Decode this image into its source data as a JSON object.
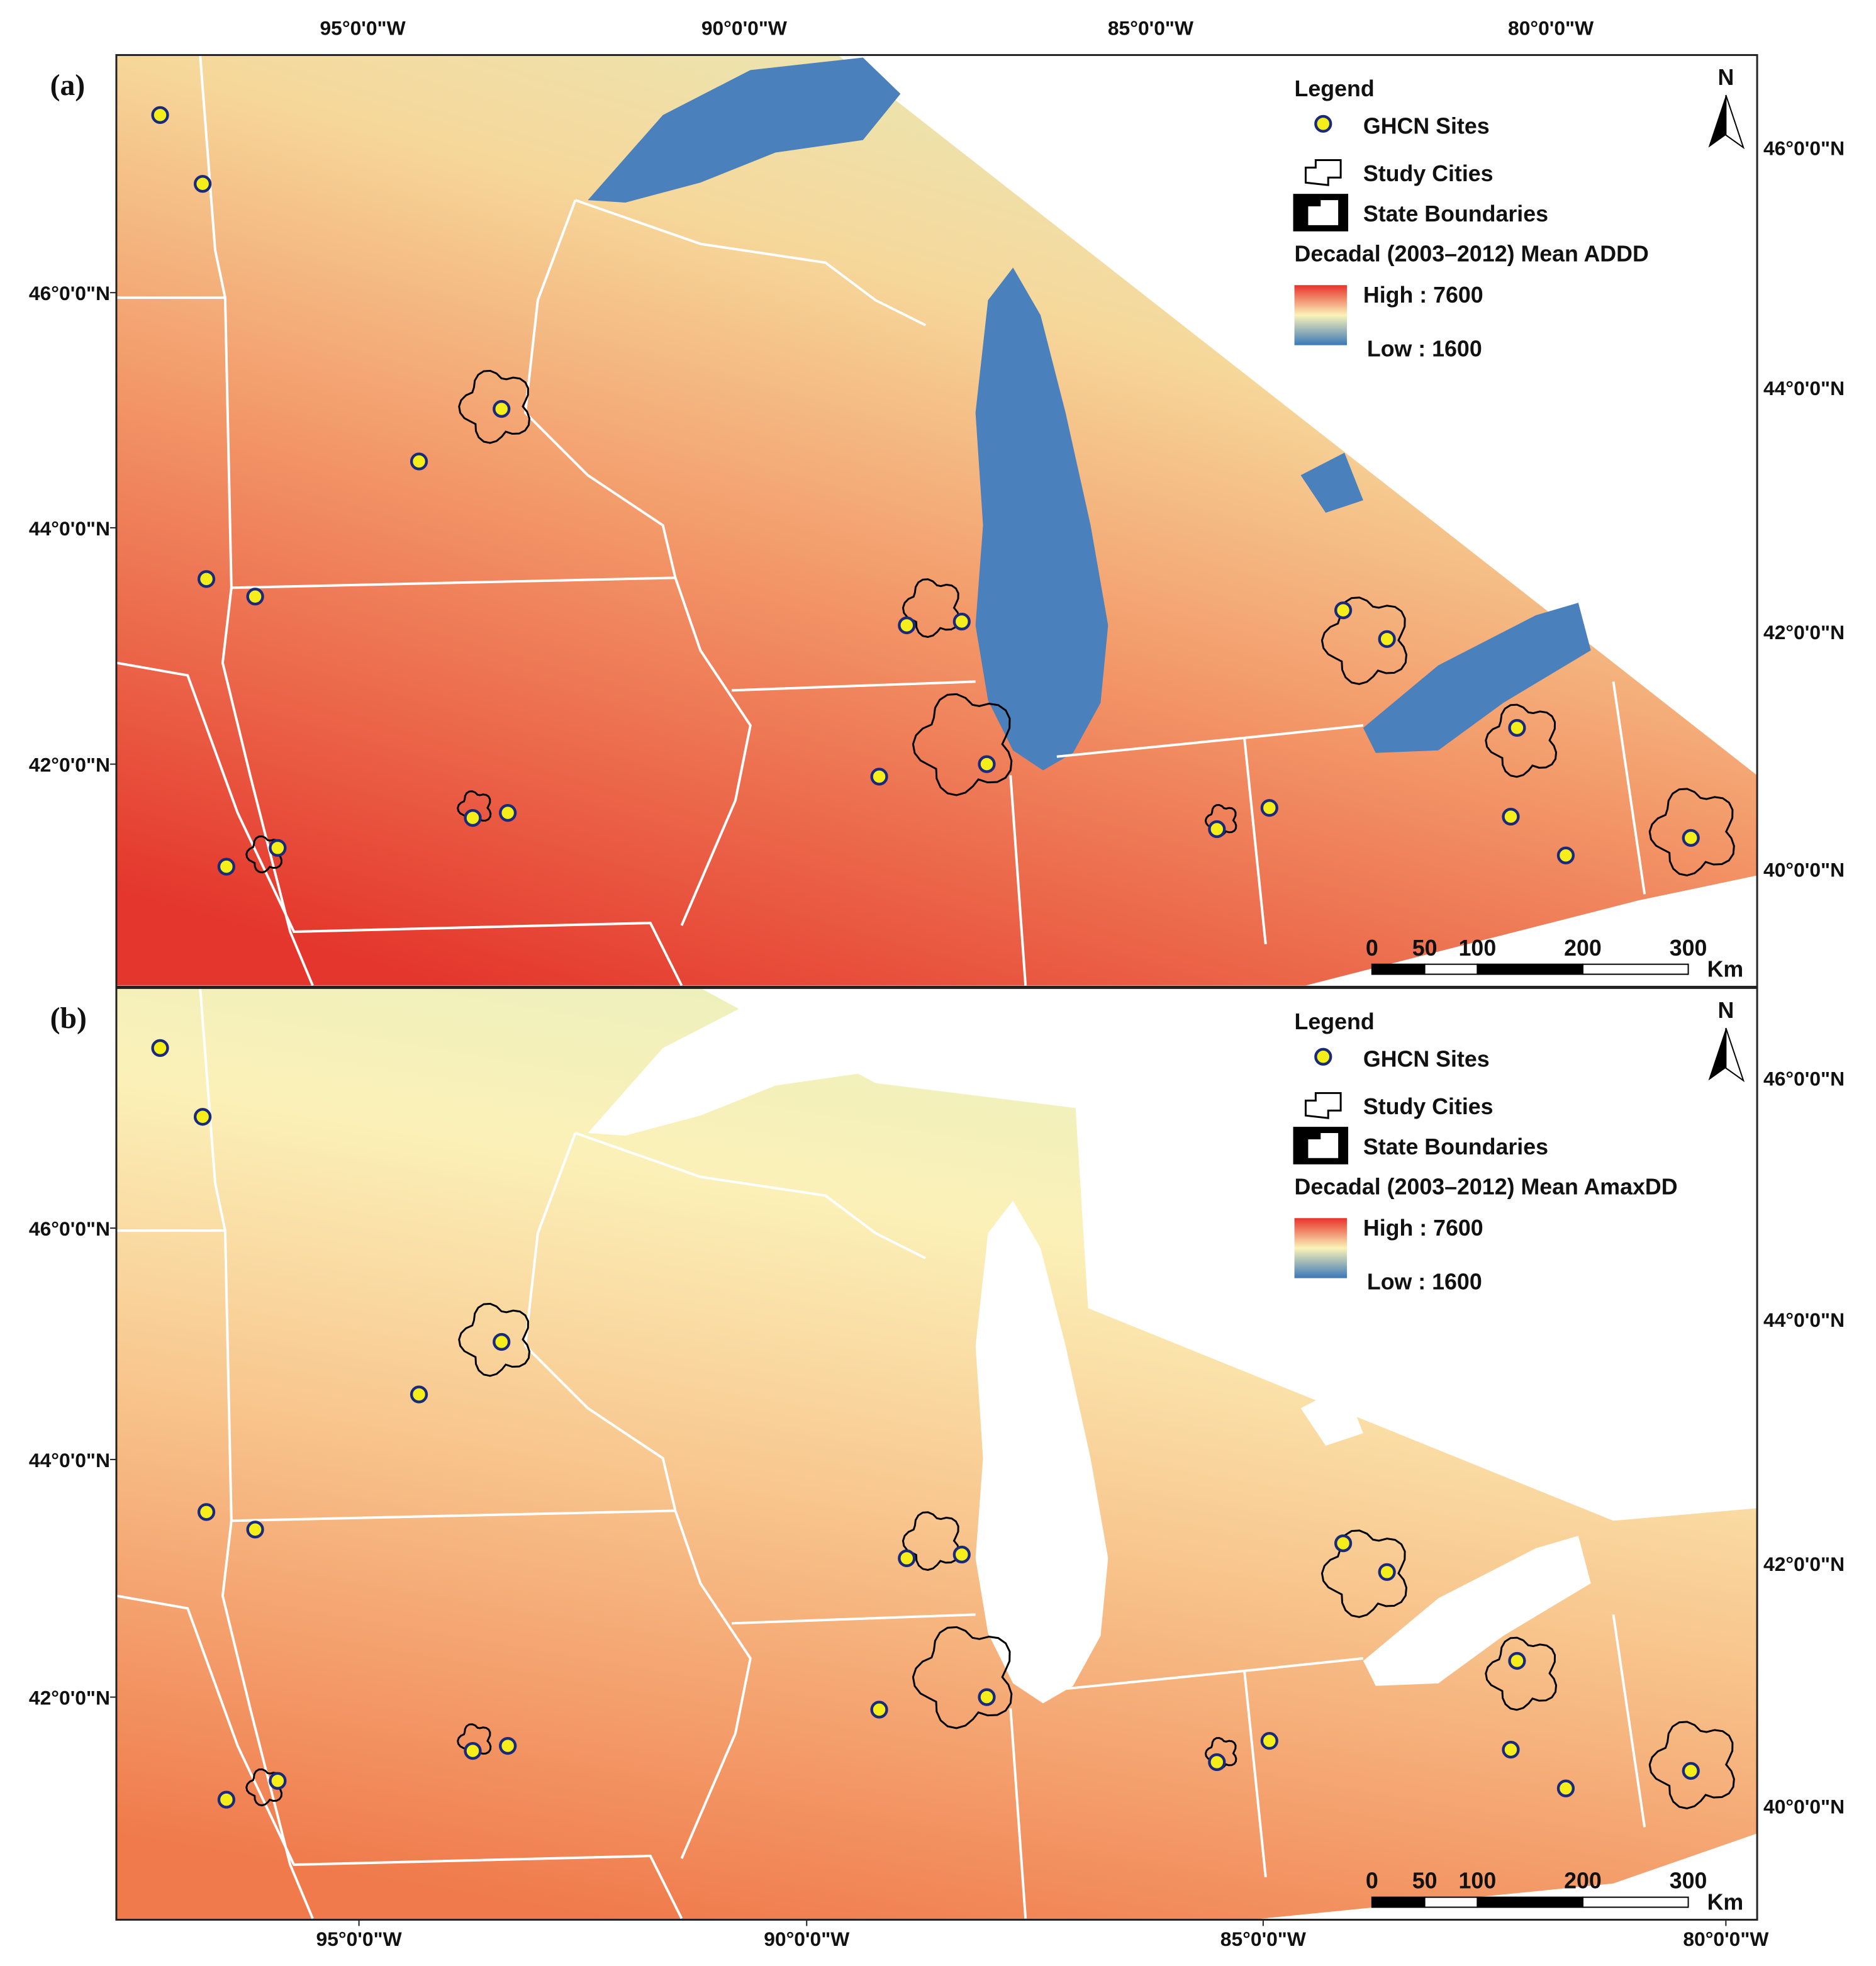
{
  "figure": {
    "top_lon_labels": [
      "95°0'0\"W",
      "90°0'0\"W",
      "85°0'0\"W",
      "80°0'0\"W"
    ],
    "bottom_lon_labels": [
      "95°0'0\"W",
      "90°0'0\"W",
      "85°0'0\"W",
      "80°0'0\"W"
    ],
    "panels": [
      {
        "label": "(a)",
        "legend": {
          "title": "Legend",
          "items": [
            "GHCN Sites",
            "Study Cities",
            "State Boundaries"
          ],
          "ramp_title": "Decadal (2003–2012) Mean ADDD",
          "high": "High : 7600",
          "low": "Low : 1600"
        },
        "north": "N",
        "left_lat_labels": [
          "46°0'0\"N",
          "44°0'0\"N",
          "42°0'0\"N"
        ],
        "right_lat_labels": [
          "46°0'0\"N",
          "44°0'0\"N",
          "42°0'0\"N",
          "40°0'0\"N"
        ],
        "scale_bar": {
          "ticks": [
            0,
            50,
            100,
            200,
            300
          ],
          "unit": "Km"
        }
      },
      {
        "label": "(b)",
        "legend": {
          "title": "Legend",
          "items": [
            "GHCN Sites",
            "Study Cities",
            "State Boundaries"
          ],
          "ramp_title": "Decadal (2003–2012) Mean AmaxDD",
          "high": "High : 7600",
          "low": "Low : 1600"
        },
        "north": "N",
        "left_lat_labels": [
          "46°0'0\"N",
          "44°0'0\"N",
          "42°0'0\"N"
        ],
        "right_lat_labels": [
          "46°0'0\"N",
          "44°0'0\"N",
          "42°0'0\"N",
          "40°0'0\"N"
        ],
        "scale_bar": {
          "ticks": [
            0,
            50,
            100,
            200,
            300
          ],
          "unit": "Km"
        }
      }
    ]
  }
}
